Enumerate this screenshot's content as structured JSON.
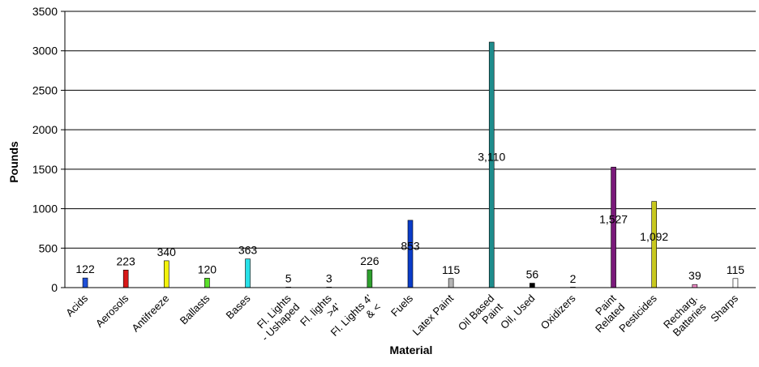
{
  "chart_data": {
    "type": "bar",
    "title": "",
    "xlabel": "Material",
    "ylabel": "Pounds",
    "ylim": [
      0,
      3500
    ],
    "yticks": [
      0,
      500,
      1000,
      1500,
      2000,
      2500,
      3000,
      3500
    ],
    "grid": true,
    "categories": [
      "Acids",
      "Aerosols",
      "Antifreeze",
      "Ballasts",
      "Bases",
      "Fl. Lights - Ushaped",
      "Fl. lights >4'",
      "Fl. Lights 4' & <",
      "Fuels",
      "Latex Paint",
      "Oil Based Paint",
      "Oil, Used",
      "Oxidizers",
      "Paint Related",
      "Pesticides",
      "Recharg. Batteries",
      "Sharps"
    ],
    "values": [
      122,
      223,
      340,
      120,
      363,
      5,
      3,
      226,
      853,
      115,
      3110,
      56,
      2,
      1527,
      1092,
      39,
      115
    ],
    "data_labels": [
      "122",
      "223",
      "340",
      "120",
      "363",
      "5",
      "3",
      "226",
      "853",
      "115",
      "3,110",
      "56",
      "2",
      "1,527",
      "1,092",
      "39",
      "115"
    ],
    "colors": [
      "#1f4fd8",
      "#d81818",
      "#f2f20c",
      "#5ae02a",
      "#27e0e8",
      "#8a2be2",
      "#a0a0a0",
      "#2ea02e",
      "#0a3cc8",
      "#b4b4b4",
      "#1e8c8c",
      "#000000",
      "#ffffff",
      "#7a1a7a",
      "#c8c81e",
      "#f08cc8",
      "#ffffff"
    ]
  }
}
